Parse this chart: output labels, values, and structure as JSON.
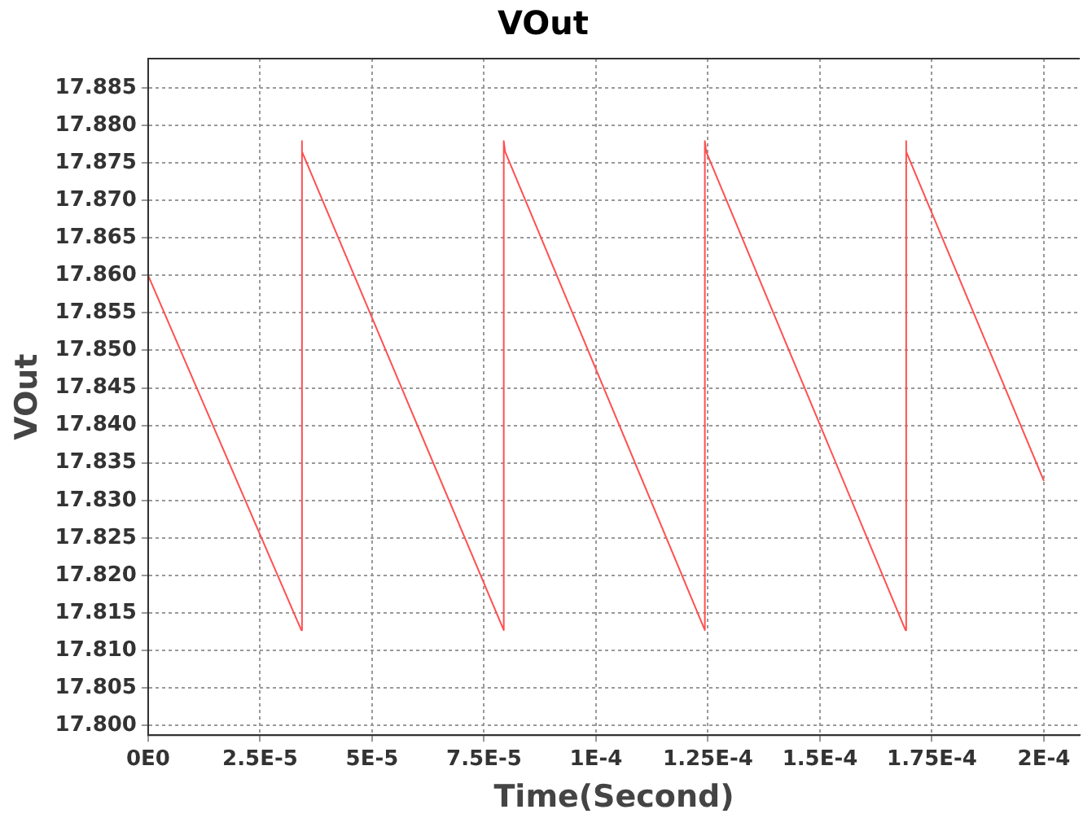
{
  "chart_data": {
    "type": "line",
    "title": "VOut",
    "xlabel": "Time(Second)",
    "ylabel": "VOut",
    "series": [
      {
        "color": "#ff5050",
        "x": [
          0,
          3.42e-05,
          3.42e-05,
          3.45e-05,
          7.94e-05,
          7.94e-05,
          7.97e-05,
          0.0001243,
          0.0001243,
          0.0001246,
          0.0001691,
          0.0001691,
          0.0001694,
          0.0002
        ],
        "values": [
          17.86,
          17.8127,
          17.8779,
          17.8765,
          17.8127,
          17.8779,
          17.8765,
          17.8127,
          17.8779,
          17.8765,
          17.8127,
          17.8779,
          17.8765,
          17.8326
        ]
      }
    ],
    "xlim": [
      0,
      0.000208
    ],
    "ylim": [
      17.7987,
      17.8889
    ],
    "xticks": [
      {
        "value": 0,
        "label": "0E0"
      },
      {
        "value": 2.5e-05,
        "label": "2.5E-5"
      },
      {
        "value": 5e-05,
        "label": "5E-5"
      },
      {
        "value": 7.5e-05,
        "label": "7.5E-5"
      },
      {
        "value": 0.0001,
        "label": "1E-4"
      },
      {
        "value": 0.000125,
        "label": "1.25E-4"
      },
      {
        "value": 0.00015,
        "label": "1.5E-4"
      },
      {
        "value": 0.000175,
        "label": "1.75E-4"
      },
      {
        "value": 0.0002,
        "label": "2E-4"
      }
    ],
    "yticks": [
      {
        "value": 17.8,
        "label": "17.800"
      },
      {
        "value": 17.805,
        "label": "17.805"
      },
      {
        "value": 17.81,
        "label": "17.810"
      },
      {
        "value": 17.815,
        "label": "17.815"
      },
      {
        "value": 17.82,
        "label": "17.820"
      },
      {
        "value": 17.825,
        "label": "17.825"
      },
      {
        "value": 17.83,
        "label": "17.830"
      },
      {
        "value": 17.835,
        "label": "17.835"
      },
      {
        "value": 17.84,
        "label": "17.840"
      },
      {
        "value": 17.845,
        "label": "17.845"
      },
      {
        "value": 17.85,
        "label": "17.850"
      },
      {
        "value": 17.855,
        "label": "17.855"
      },
      {
        "value": 17.86,
        "label": "17.860"
      },
      {
        "value": 17.865,
        "label": "17.865"
      },
      {
        "value": 17.87,
        "label": "17.870"
      },
      {
        "value": 17.875,
        "label": "17.875"
      },
      {
        "value": 17.88,
        "label": "17.880"
      },
      {
        "value": 17.885,
        "label": "17.885"
      }
    ],
    "grid": true,
    "legend": false,
    "marker": "none",
    "line_style": "solid"
  }
}
